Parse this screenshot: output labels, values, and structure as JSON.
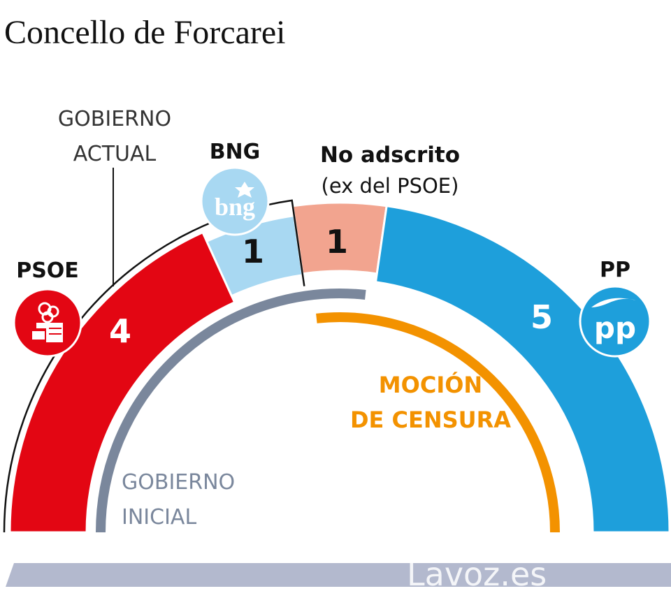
{
  "title": "Concello de Forcarei",
  "annotations": {
    "current_government": [
      "GOBIERNO",
      "ACTUAL"
    ],
    "initial_government": [
      "GOBIERNO",
      "INICIAL"
    ],
    "censure_motion": [
      "MOCIÓN",
      "DE CENSURA"
    ],
    "independent_note": "(ex del PSOE)"
  },
  "logos": {
    "bng": "bng",
    "pp": "pp"
  },
  "watermark": "Lavoz.es",
  "colors": {
    "psoe": "#E30613",
    "bng": "#A8D8F2",
    "independent": "#F2A48F",
    "pp": "#1E9FDB",
    "initial_gov": "#7A879C",
    "censure": "#F39200",
    "base_bar": "#B3B9CE"
  },
  "chart_data": {
    "type": "parliament",
    "total_seats": 11,
    "series": [
      {
        "name": "PSOE",
        "seats": 4,
        "color": "#E30613"
      },
      {
        "name": "BNG",
        "seats": 1,
        "color": "#A8D8F2"
      },
      {
        "name": "No adscrito",
        "seats": 1,
        "color": "#F2A48F"
      },
      {
        "name": "PP",
        "seats": 5,
        "color": "#1E9FDB"
      }
    ]
  }
}
